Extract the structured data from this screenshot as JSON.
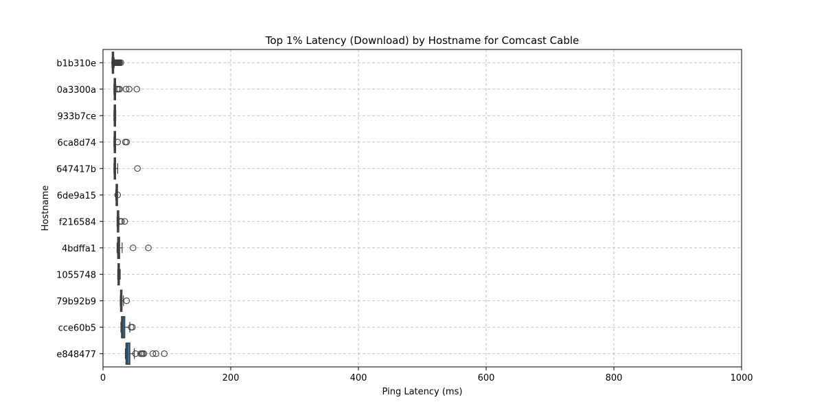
{
  "chart_data": {
    "type": "box",
    "orientation": "horizontal",
    "title": "Top 1% Latency (Download) by Hostname for Comcast Cable",
    "xlabel": "Ping Latency (ms)",
    "ylabel": "Hostname",
    "xlim": [
      0,
      1000
    ],
    "xticks": [
      0,
      200,
      400,
      600,
      800,
      1000
    ],
    "grid": true,
    "box_color": "#3274a1",
    "categories": [
      "b1b310e",
      "0a3300a",
      "933b7ce",
      "6ca8d74",
      "647417b",
      "6de9a15",
      "f216584",
      "4bdffa1",
      "1055748",
      "79b92b9",
      "cce60b5",
      "e848477"
    ],
    "boxes": [
      {
        "name": "b1b310e",
        "whislo": 14,
        "q1": 14.5,
        "med": 15,
        "q3": 16,
        "whishi": 17.5,
        "fliers": [
          18,
          19,
          20,
          21,
          22,
          23,
          24,
          25,
          26,
          28
        ]
      },
      {
        "name": "0a3300a",
        "whislo": 17,
        "q1": 17.5,
        "med": 18,
        "q3": 19,
        "whishi": 20,
        "fliers": [
          22,
          24,
          26,
          36,
          41,
          53
        ]
      },
      {
        "name": "933b7ce",
        "whislo": 17,
        "q1": 17.5,
        "med": 18,
        "q3": 19,
        "whishi": 20,
        "fliers": []
      },
      {
        "name": "6ca8d74",
        "whislo": 17,
        "q1": 17.5,
        "med": 18,
        "q3": 18.5,
        "whishi": 19.5,
        "fliers": [
          23,
          35,
          37
        ]
      },
      {
        "name": "647417b",
        "whislo": 17,
        "q1": 17.5,
        "med": 18,
        "q3": 19.5,
        "whishi": 23,
        "fliers": [
          54
        ]
      },
      {
        "name": "6de9a15",
        "whislo": 20,
        "q1": 20.5,
        "med": 21,
        "q3": 21.5,
        "whishi": 22,
        "fliers": [
          23
        ]
      },
      {
        "name": "f216584",
        "whislo": 22,
        "q1": 22.5,
        "med": 23,
        "q3": 23.5,
        "whishi": 25,
        "fliers": [
          27,
          29,
          34
        ]
      },
      {
        "name": "4bdffa1",
        "whislo": 22,
        "q1": 23,
        "med": 24,
        "q3": 26,
        "whishi": 30,
        "fliers": [
          47,
          71
        ]
      },
      {
        "name": "1055748",
        "whislo": 23,
        "q1": 23.5,
        "med": 24,
        "q3": 25,
        "whishi": 27,
        "fliers": []
      },
      {
        "name": "79b92b9",
        "whislo": 27,
        "q1": 27.5,
        "med": 28,
        "q3": 29,
        "whishi": 32,
        "fliers": [
          37
        ]
      },
      {
        "name": "cce60b5",
        "whislo": 28,
        "q1": 29,
        "med": 31,
        "q3": 34,
        "whishi": 42,
        "fliers": [
          44,
          46
        ]
      },
      {
        "name": "e848477",
        "whislo": 35,
        "q1": 36,
        "med": 38,
        "q3": 42,
        "whishi": 49,
        "fliers": [
          51,
          59,
          61,
          62,
          64,
          78,
          83,
          96
        ]
      }
    ]
  }
}
